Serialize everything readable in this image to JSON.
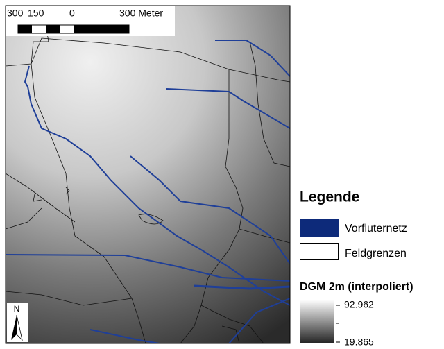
{
  "scale_bar": {
    "labels": [
      "300",
      "150",
      "0",
      "300 Meter"
    ]
  },
  "north_arrow": "N",
  "legend": {
    "title": "Legende",
    "items": [
      "Vorfluternetz",
      "Feldgrenzen"
    ],
    "raster": {
      "title": "DGM 2m (interpoliert)",
      "max": 92.962,
      "min": 19.865
    }
  }
}
